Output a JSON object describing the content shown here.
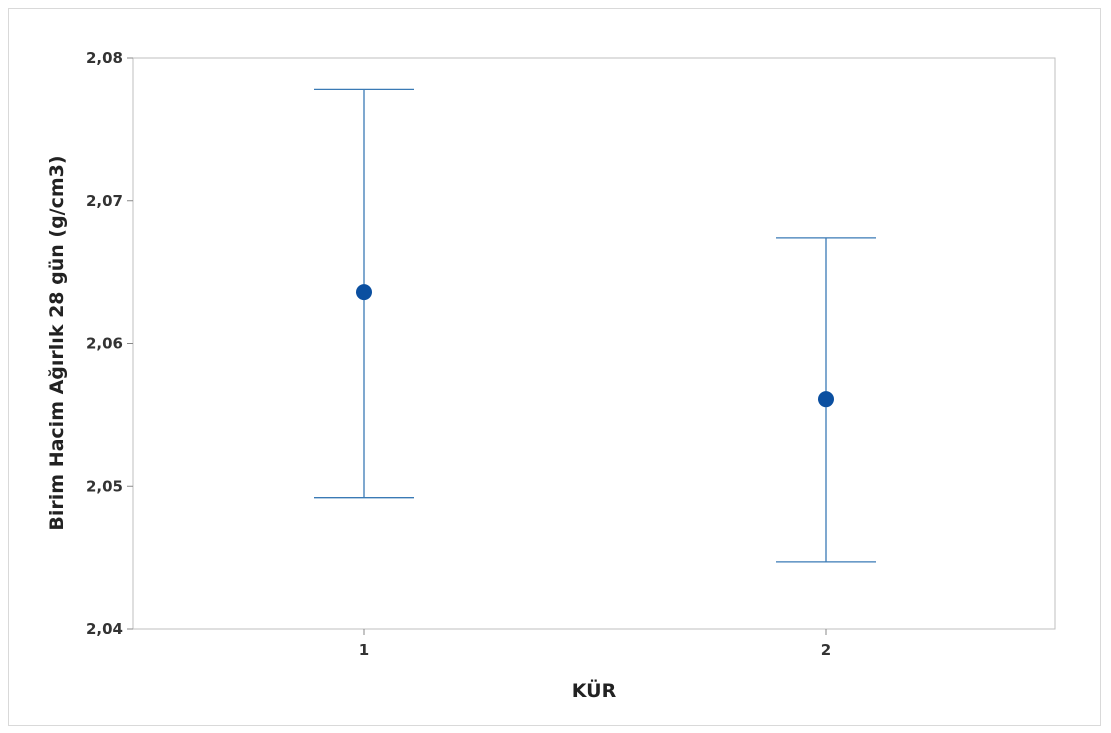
{
  "chart_data": {
    "type": "scatter",
    "subtype": "interval-plot",
    "title": "",
    "xlabel": "KÜR",
    "ylabel": "Birim Hacim Ağırlık 28 gün (g/cm3)",
    "categories": [
      "1",
      "2"
    ],
    "series": [
      {
        "points": [
          {
            "x": "1",
            "mean": 2.0636,
            "lower": 2.0492,
            "upper": 2.0778
          },
          {
            "x": "2",
            "mean": 2.0561,
            "lower": 2.0447,
            "upper": 2.0674
          }
        ]
      }
    ],
    "ylim": [
      2.04,
      2.08
    ],
    "yticks": [
      2.04,
      2.05,
      2.06,
      2.07,
      2.08
    ],
    "ytick_labels": [
      "2,04",
      "2,05",
      "2,06",
      "2,07",
      "2,08"
    ],
    "grid": false,
    "legend": "none",
    "colors": {
      "interval": "#3a7ab5",
      "marker": "#0b4fa0",
      "plot_border": "#bfbfbf",
      "plot_background": "#ffffff"
    }
  }
}
